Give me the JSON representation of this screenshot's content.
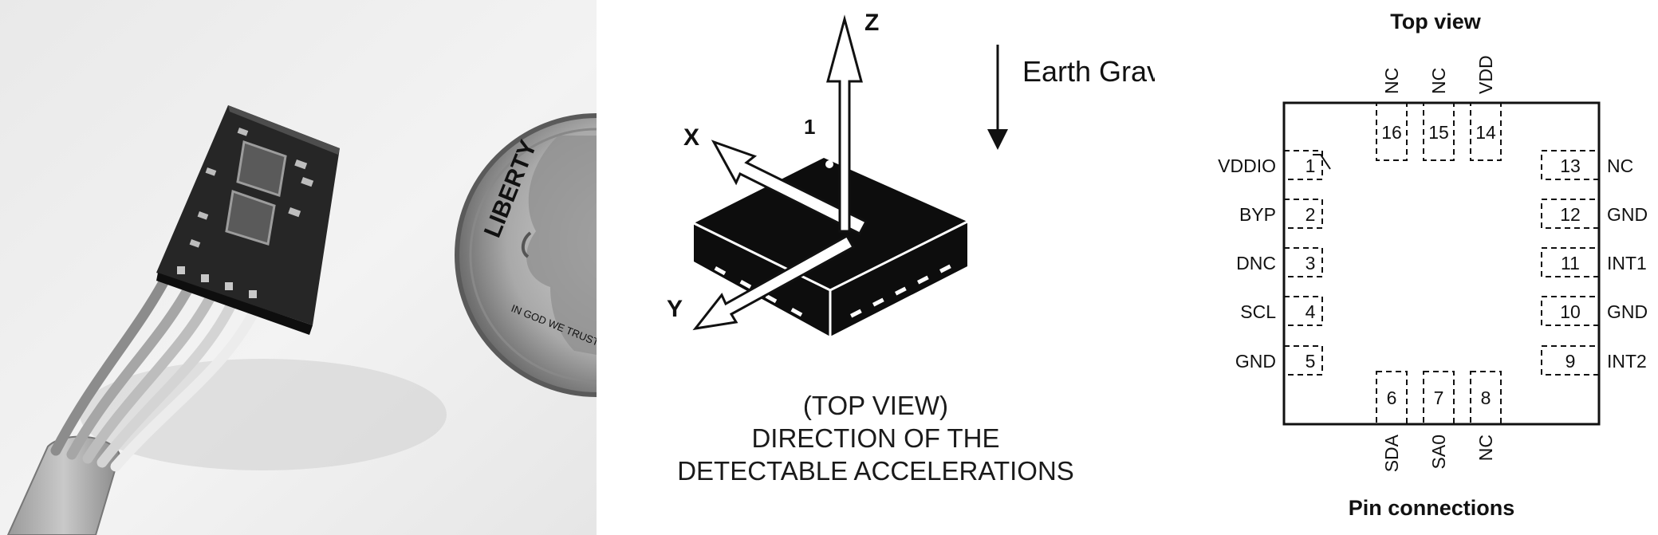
{
  "axes_diagram": {
    "axis_x": "X",
    "axis_y": "Y",
    "axis_z": "Z",
    "pin1_marker": "1",
    "gravity_label": "Earth Gravity",
    "caption_lines": [
      "(TOP VIEW)",
      "DIRECTION OF THE",
      "DETECTABLE ACCELERATIONS"
    ]
  },
  "pin_diagram": {
    "title": "Top view",
    "footer": "Pin connections",
    "pins": [
      {
        "number": "1",
        "name": "VDDIO"
      },
      {
        "number": "2",
        "name": "BYP"
      },
      {
        "number": "3",
        "name": "DNC"
      },
      {
        "number": "4",
        "name": "SCL"
      },
      {
        "number": "5",
        "name": "GND"
      },
      {
        "number": "6",
        "name": "SDA"
      },
      {
        "number": "7",
        "name": "SA0"
      },
      {
        "number": "8",
        "name": "NC"
      },
      {
        "number": "9",
        "name": "INT2"
      },
      {
        "number": "10",
        "name": "GND"
      },
      {
        "number": "11",
        "name": "INT1"
      },
      {
        "number": "12",
        "name": "GND"
      },
      {
        "number": "13",
        "name": "NC"
      },
      {
        "number": "14",
        "name": "VDD"
      },
      {
        "number": "15",
        "name": "NC"
      },
      {
        "number": "16",
        "name": "NC"
      }
    ]
  },
  "photo": {
    "coin_lettering": [
      "LIBERTY",
      "IN GOD WE TRUST"
    ]
  }
}
